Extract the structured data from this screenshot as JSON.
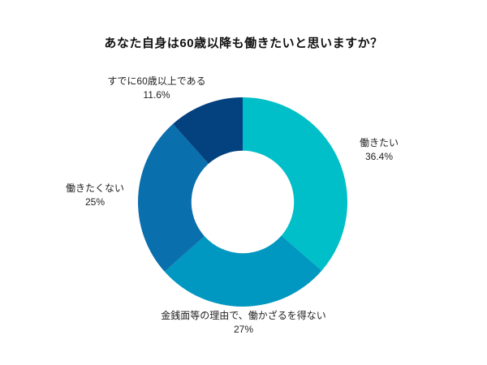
{
  "title": "あなた自身は60歳以降も働きたいと思いますか？",
  "chart_data": {
    "type": "pie",
    "subtype": "donut",
    "title": "あなた自身は60歳以降も働きたいと思いますか？",
    "labels": [
      "働きたい",
      "金銭面等の理由で、働かざるを得ない",
      "働きたくない",
      "すでに60歳以上である"
    ],
    "values": [
      36.4,
      27,
      25,
      11.6
    ],
    "value_labels": [
      "36.4%",
      "27%",
      "25%",
      "11.6%"
    ],
    "colors": [
      "#00BFC8",
      "#0097C0",
      "#0A6FAD",
      "#03417F"
    ],
    "start_angle_deg": 0,
    "direction": "clockwise",
    "inner_radius_ratio": 0.49,
    "background": "#FFFFFF",
    "legend_position": "outside-labels"
  }
}
